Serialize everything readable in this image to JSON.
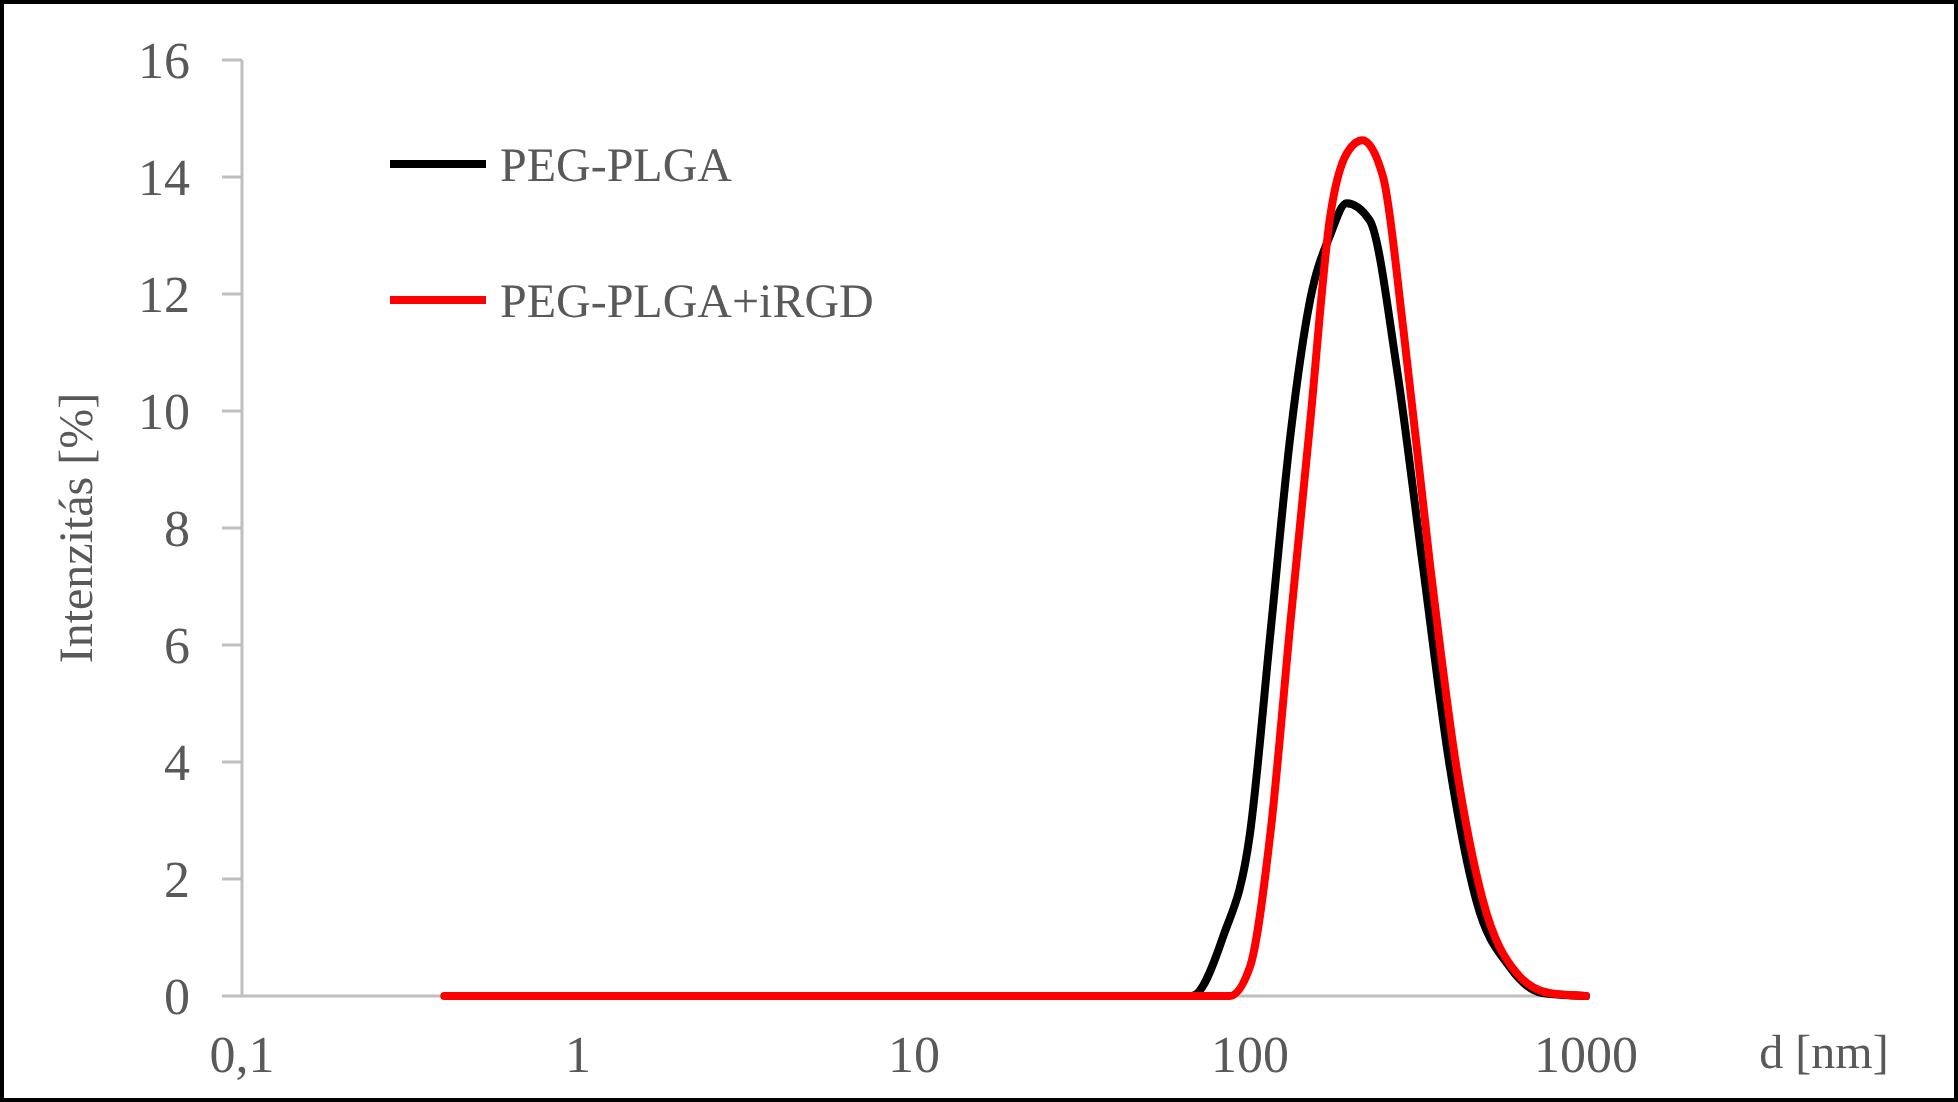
{
  "chart_data": {
    "type": "line",
    "xlabel": "d [nm]",
    "ylabel": "Intenzitás [%]",
    "log": "x",
    "xlim": [
      0.1,
      1000
    ],
    "xticks": [
      {
        "value": 0.1,
        "label": "0,1"
      },
      1,
      10,
      100,
      1000
    ],
    "ylim": [
      0,
      16
    ],
    "yticks": [
      0,
      2,
      4,
      6,
      8,
      10,
      12,
      14,
      16
    ],
    "legend": "top left",
    "line_style": "solid",
    "series": [
      {
        "name": "PEG-PLGA",
        "color": "#000000",
        "x": [
          50,
          67,
          83,
          100,
          115,
          132,
          151,
          173,
          194,
          227,
          273,
          327,
          393,
          471,
          592,
          742,
          1000
        ],
        "values": [
          0,
          0,
          1.0,
          2.78,
          6.2,
          9.6,
          11.9,
          13.0,
          13.55,
          13.26,
          10.76,
          7.35,
          3.93,
          1.64,
          0.5,
          0.05,
          0
        ]
      },
      {
        "name": "PEG-PLGA+iRGD",
        "color": "#ff0000",
        "x": [
          0.4,
          1,
          10,
          50,
          87,
          100,
          115,
          132,
          151,
          173,
          194,
          216,
          249,
          286,
          343,
          411,
          493,
          620,
          778,
          1000
        ],
        "values": [
          0,
          0,
          0,
          0,
          0,
          0.5,
          2.78,
          6.4,
          9.8,
          13.3,
          14.4,
          14.63,
          14.0,
          11.4,
          7.4,
          3.93,
          1.64,
          0.4,
          0.05,
          0
        ]
      }
    ]
  }
}
